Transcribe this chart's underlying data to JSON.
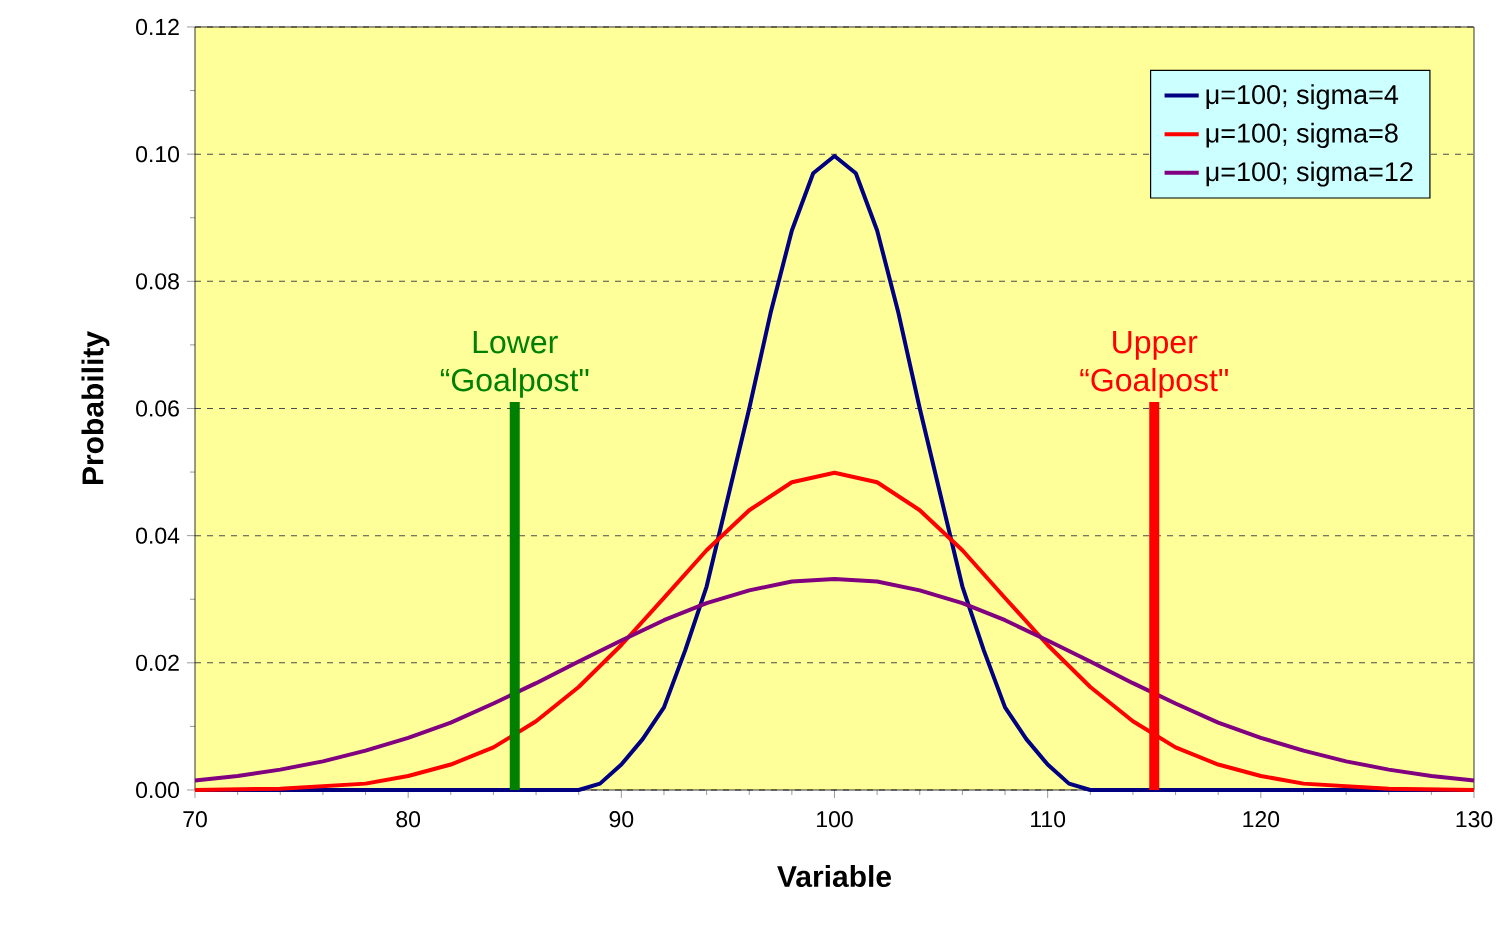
{
  "chart_data": {
    "type": "line",
    "xlabel": "Variable",
    "ylabel": "Probability",
    "xlim": [
      70,
      130
    ],
    "ylim": [
      0,
      0.12
    ],
    "xticks": [
      70,
      80,
      90,
      100,
      110,
      120,
      130
    ],
    "yticks": [
      {
        "value": 0,
        "label": "0.00"
      },
      {
        "value": 0.02,
        "label": "0.02"
      },
      {
        "value": 0.04,
        "label": "0.04"
      },
      {
        "value": 0.06,
        "label": "0.06"
      },
      {
        "value": 0.08,
        "label": "0.08"
      },
      {
        "value": 0.1,
        "label": "0.10"
      },
      {
        "value": 0.12,
        "label": "0.12"
      }
    ],
    "grid": "y",
    "legend": "top right",
    "series": [
      {
        "name": "μ=100; sigma=4",
        "color": "#000080",
        "x": [
          70,
          86,
          88,
          89,
          90,
          91,
          92,
          93,
          94,
          95,
          96,
          97,
          98,
          99,
          100,
          101,
          102,
          103,
          104,
          105,
          106,
          107,
          108,
          109,
          110,
          111,
          112,
          130
        ],
        "values": [
          0,
          0,
          0,
          0.001,
          0.004,
          0.008,
          0.013,
          0.022,
          0.032,
          0.046,
          0.06,
          0.075,
          0.088,
          0.097,
          0.0997,
          0.097,
          0.088,
          0.075,
          0.06,
          0.046,
          0.032,
          0.022,
          0.013,
          0.008,
          0.004,
          0.001,
          0,
          0
        ]
      },
      {
        "name": "μ=100; sigma=8",
        "color": "#ff0000",
        "x": [
          70,
          74,
          78,
          80,
          82,
          84,
          86,
          88,
          90,
          92,
          94,
          96,
          98,
          100,
          102,
          104,
          106,
          108,
          110,
          112,
          114,
          116,
          118,
          120,
          122,
          126,
          130
        ],
        "values": [
          0,
          0.0002,
          0.001,
          0.0022,
          0.004,
          0.0067,
          0.0108,
          0.0162,
          0.0228,
          0.0302,
          0.0377,
          0.044,
          0.0484,
          0.0499,
          0.0484,
          0.044,
          0.0377,
          0.0302,
          0.0228,
          0.0162,
          0.0108,
          0.0067,
          0.004,
          0.0022,
          0.001,
          0.0002,
          0
        ]
      },
      {
        "name": "μ=100; sigma=12",
        "color": "#800080",
        "x": [
          70,
          72,
          74,
          76,
          78,
          80,
          82,
          84,
          86,
          88,
          90,
          92,
          94,
          96,
          98,
          100,
          102,
          104,
          106,
          108,
          110,
          112,
          114,
          116,
          118,
          120,
          122,
          124,
          126,
          128,
          130
        ],
        "values": [
          0.0015,
          0.0022,
          0.0032,
          0.0045,
          0.0062,
          0.0082,
          0.0106,
          0.0136,
          0.0168,
          0.0202,
          0.0235,
          0.0267,
          0.0294,
          0.0314,
          0.0328,
          0.0332,
          0.0328,
          0.0314,
          0.0294,
          0.0267,
          0.0235,
          0.0202,
          0.0168,
          0.0136,
          0.0106,
          0.0082,
          0.0062,
          0.0045,
          0.0032,
          0.0022,
          0.0015
        ]
      },
      {
        "type": "bar",
        "name": "Lower “Goalpost\"",
        "color": "#008000",
        "x": [
          85
        ],
        "values": [
          0.061
        ]
      },
      {
        "type": "bar",
        "name": "Upper “Goalpost\"",
        "color": "#ff0000",
        "x": [
          115
        ],
        "values": [
          0.061
        ]
      }
    ]
  }
}
